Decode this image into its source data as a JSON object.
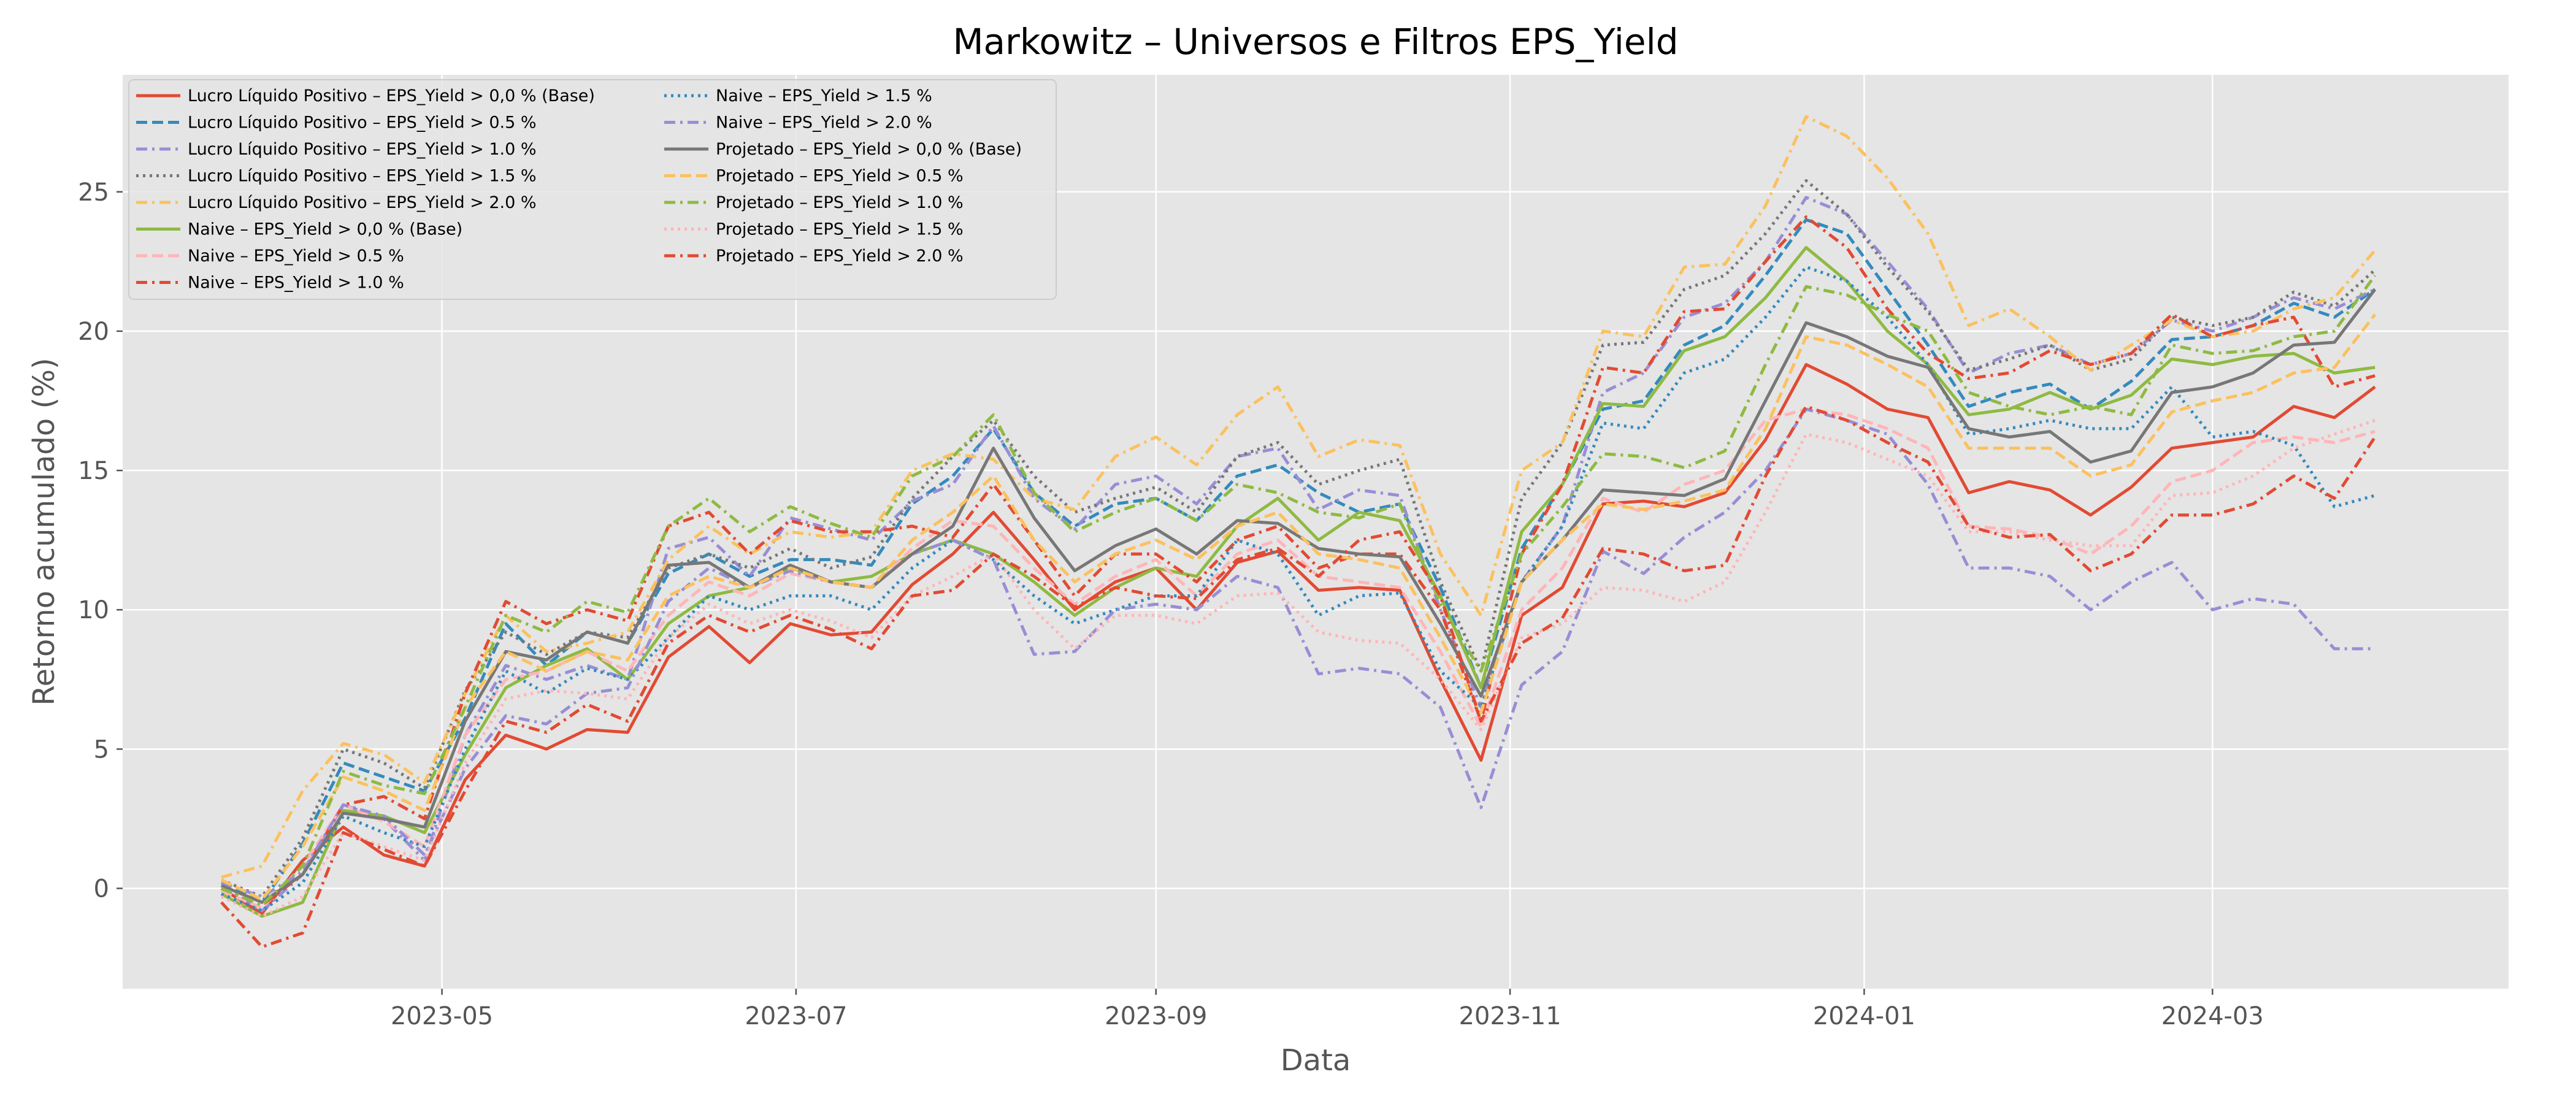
{
  "chart_data": {
    "type": "line",
    "title": "Markowitz – Universos e Filtros EPS_Yield",
    "xlabel": "Data",
    "ylabel": "Retorno acumulado (%)",
    "grid": true,
    "legend": "upper-left",
    "xlim": [
      "2023-03-07",
      "2024-04-21"
    ],
    "ylim": [
      -3.6,
      29.2
    ],
    "x_ticks": [
      {
        "date": "2023-05-01",
        "label": "2023-05"
      },
      {
        "date": "2023-07-01",
        "label": "2023-07"
      },
      {
        "date": "2023-09-01",
        "label": "2023-09"
      },
      {
        "date": "2023-11-01",
        "label": "2023-11"
      },
      {
        "date": "2024-01-01",
        "label": "2024-01"
      },
      {
        "date": "2024-03-01",
        "label": "2024-03"
      }
    ],
    "y_ticks": [
      0,
      5,
      10,
      15,
      20,
      25
    ],
    "x": [
      "2023-03-24",
      "2023-03-31",
      "2023-04-07",
      "2023-04-14",
      "2023-04-21",
      "2023-04-28",
      "2023-05-05",
      "2023-05-12",
      "2023-05-19",
      "2023-05-26",
      "2023-06-02",
      "2023-06-09",
      "2023-06-16",
      "2023-06-23",
      "2023-06-30",
      "2023-07-07",
      "2023-07-14",
      "2023-07-21",
      "2023-07-28",
      "2023-08-04",
      "2023-08-11",
      "2023-08-18",
      "2023-08-25",
      "2023-09-01",
      "2023-09-08",
      "2023-09-15",
      "2023-09-22",
      "2023-09-29",
      "2023-10-06",
      "2023-10-13",
      "2023-10-20",
      "2023-10-27",
      "2023-11-03",
      "2023-11-10",
      "2023-11-17",
      "2023-11-24",
      "2023-12-01",
      "2023-12-08",
      "2023-12-15",
      "2023-12-22",
      "2023-12-29",
      "2024-01-05",
      "2024-01-12",
      "2024-01-19",
      "2024-01-26",
      "2024-02-02",
      "2024-02-09",
      "2024-02-16",
      "2024-02-23",
      "2024-03-01",
      "2024-03-08",
      "2024-03-15",
      "2024-03-22",
      "2024-03-29"
    ],
    "series": [
      {
        "name": "Lucro Líquido Positivo – EPS_Yield > 0,0 % (Base)",
        "color": "#E24A33",
        "dash": "solid",
        "values": [
          0.0,
          -0.9,
          1.0,
          2.2,
          1.2,
          0.8,
          3.9,
          5.5,
          5.0,
          5.7,
          5.6,
          8.3,
          9.4,
          8.1,
          9.5,
          9.1,
          9.2,
          10.9,
          12.0,
          13.5,
          11.8,
          10.0,
          11.0,
          11.5,
          10.0,
          11.7,
          12.1,
          10.7,
          10.8,
          10.7,
          7.5,
          4.6,
          9.8,
          10.8,
          13.8,
          13.9,
          13.7,
          14.2,
          16.1,
          18.8,
          18.1,
          17.2,
          16.9,
          14.2,
          14.6,
          14.3,
          13.4,
          14.4,
          15.8,
          16.0,
          16.2,
          17.3,
          16.9,
          18.0
        ]
      },
      {
        "name": "Lucro Líquido Positivo – EPS_Yield > 0.5 %",
        "color": "#348ABD",
        "dash": "dashed",
        "values": [
          0.2,
          -0.5,
          1.6,
          4.5,
          4.0,
          3.5,
          6.1,
          9.5,
          8.0,
          9.2,
          8.8,
          11.3,
          12.0,
          11.2,
          11.8,
          11.8,
          11.6,
          13.8,
          14.8,
          16.5,
          14.2,
          13.0,
          13.8,
          14.0,
          13.2,
          14.8,
          15.2,
          14.2,
          13.5,
          13.8,
          10.8,
          7.2,
          12.2,
          14.5,
          17.2,
          17.5,
          19.5,
          20.2,
          22.0,
          24.0,
          23.5,
          21.5,
          19.5,
          17.3,
          17.8,
          18.1,
          17.2,
          18.2,
          19.7,
          19.8,
          20.2,
          21.0,
          20.5,
          21.5
        ]
      },
      {
        "name": "Lucro Líquido Positivo – EPS_Yield > 1.0 %",
        "color": "#988ED5",
        "dash": "dashdot",
        "values": [
          0.1,
          -0.8,
          0.5,
          3.0,
          2.5,
          1.0,
          5.5,
          8.0,
          7.5,
          8.0,
          7.5,
          12.2,
          12.6,
          11.2,
          13.3,
          12.9,
          12.5,
          13.9,
          14.5,
          16.6,
          14.0,
          12.9,
          14.5,
          14.8,
          13.8,
          15.5,
          15.8,
          13.6,
          14.3,
          14.1,
          10.0,
          6.5,
          11.0,
          13.0,
          17.8,
          18.5,
          20.5,
          21.0,
          22.5,
          24.8,
          24.2,
          22.5,
          20.8,
          18.5,
          19.2,
          19.5,
          18.8,
          19.2,
          20.4,
          20.0,
          20.5,
          21.2,
          20.8,
          21.5
        ]
      },
      {
        "name": "Lucro Líquido Positivo – EPS_Yield > 1.5 %",
        "color": "#777777",
        "dash": "dotted",
        "values": [
          0.3,
          -0.3,
          1.8,
          5.0,
          4.5,
          3.6,
          7.1,
          9.2,
          8.4,
          9.2,
          9.0,
          11.5,
          12.0,
          11.5,
          12.2,
          11.5,
          11.9,
          14.0,
          15.5,
          16.8,
          14.8,
          13.5,
          14.0,
          14.4,
          13.5,
          15.5,
          16.0,
          14.5,
          15.0,
          15.4,
          11.0,
          7.8,
          14.0,
          16.0,
          19.5,
          19.6,
          21.5,
          22.0,
          23.5,
          25.4,
          24.2,
          22.3,
          20.7,
          18.6,
          19.0,
          19.5,
          18.6,
          19.0,
          20.5,
          20.2,
          20.5,
          21.4,
          20.9,
          22.2
        ]
      },
      {
        "name": "Lucro Líquido Positivo – EPS_Yield > 2.0 %",
        "color": "#FBC15E",
        "dash": "dashdot",
        "values": [
          0.4,
          0.8,
          3.5,
          5.2,
          4.8,
          3.8,
          7.0,
          9.8,
          8.5,
          8.8,
          9.2,
          11.8,
          13.0,
          12.0,
          12.8,
          12.6,
          12.8,
          15.0,
          15.6,
          15.4,
          14.0,
          13.6,
          15.5,
          16.2,
          15.2,
          17.0,
          18.0,
          15.5,
          16.1,
          15.9,
          12.0,
          9.8,
          15.0,
          16.0,
          20.0,
          19.8,
          22.3,
          22.4,
          24.5,
          27.7,
          27.0,
          25.5,
          23.5,
          20.2,
          20.8,
          19.8,
          18.6,
          19.5,
          20.4,
          19.8,
          20.0,
          20.8,
          21.2,
          22.9
        ]
      },
      {
        "name": "Naive – EPS_Yield > 0,0 % (Base)",
        "color": "#8EBA42",
        "dash": "solid",
        "values": [
          -0.2,
          -1.0,
          -0.5,
          2.8,
          2.6,
          2.0,
          4.8,
          7.2,
          8.0,
          8.6,
          7.5,
          9.5,
          10.5,
          10.8,
          11.5,
          11.0,
          11.2,
          12.0,
          12.5,
          12.0,
          11.0,
          9.8,
          10.8,
          11.5,
          11.2,
          13.0,
          14.0,
          12.5,
          13.5,
          13.2,
          10.5,
          7.2,
          12.8,
          14.5,
          17.4,
          17.3,
          19.3,
          19.8,
          21.2,
          23.0,
          21.8,
          20.0,
          18.8,
          17.0,
          17.2,
          17.8,
          17.2,
          17.7,
          19.0,
          18.8,
          19.1,
          19.2,
          18.5,
          18.7
        ]
      },
      {
        "name": "Naive – EPS_Yield > 0.5 %",
        "color": "#FFB5B8",
        "dash": "dashed",
        "values": [
          -0.1,
          -0.7,
          0.8,
          3.0,
          2.4,
          1.5,
          5.5,
          7.5,
          7.8,
          8.5,
          7.8,
          9.8,
          11.0,
          10.5,
          11.3,
          11.0,
          10.8,
          12.2,
          13.2,
          13.0,
          11.5,
          10.2,
          11.2,
          11.8,
          10.5,
          12.0,
          12.5,
          11.2,
          11.0,
          10.8,
          8.5,
          5.8,
          10.0,
          11.5,
          14.0,
          13.5,
          14.5,
          15.0,
          16.8,
          17.2,
          17.0,
          16.5,
          15.8,
          13.0,
          12.9,
          12.6,
          12.0,
          13.0,
          14.6,
          15.0,
          16.0,
          16.2,
          16.0,
          16.4
        ]
      },
      {
        "name": "Naive – EPS_Yield > 1.0 %",
        "color": "#E24A33",
        "dash": "dashdot",
        "values": [
          0.0,
          -0.6,
          0.5,
          3.0,
          3.3,
          2.5,
          7.0,
          10.3,
          9.5,
          10.0,
          9.6,
          13.0,
          13.5,
          12.0,
          13.2,
          12.8,
          12.8,
          13.0,
          12.6,
          14.5,
          12.5,
          10.5,
          12.0,
          12.0,
          11.0,
          12.5,
          13.0,
          11.5,
          12.0,
          12.0,
          10.0,
          6.0,
          12.0,
          14.5,
          18.7,
          18.5,
          20.7,
          20.8,
          22.5,
          24.1,
          23.0,
          20.8,
          19.2,
          18.3,
          18.5,
          19.3,
          18.8,
          19.2,
          20.6,
          19.8,
          20.2,
          20.5,
          18.0,
          18.4
        ]
      },
      {
        "name": "Naive – EPS_Yield > 1.5 %",
        "color": "#348ABD",
        "dash": "dotted",
        "values": [
          -0.2,
          -0.8,
          0.2,
          2.6,
          2.0,
          1.5,
          5.0,
          7.8,
          7.0,
          7.9,
          7.5,
          9.0,
          10.5,
          10.0,
          10.5,
          10.5,
          10.0,
          11.5,
          12.5,
          11.8,
          10.5,
          9.5,
          10.0,
          10.5,
          10.5,
          12.5,
          12.0,
          9.8,
          10.5,
          10.6,
          7.8,
          6.5,
          11.0,
          13.0,
          16.7,
          16.5,
          18.5,
          19.0,
          20.5,
          22.3,
          21.8,
          20.5,
          18.8,
          16.3,
          16.5,
          16.8,
          16.5,
          16.5,
          18.0,
          16.2,
          16.4,
          15.9,
          13.7,
          14.1
        ]
      },
      {
        "name": "Naive – EPS_Yield > 2.0 %",
        "color": "#988ED5",
        "dash": "dashdot",
        "values": [
          0.2,
          -0.3,
          0.6,
          3.0,
          2.6,
          1.2,
          4.3,
          6.2,
          5.9,
          7.0,
          7.2,
          10.3,
          11.5,
          10.8,
          11.4,
          11.0,
          10.8,
          12.0,
          12.5,
          11.8,
          8.4,
          8.5,
          10.0,
          10.2,
          10.0,
          11.2,
          10.8,
          7.7,
          7.9,
          7.7,
          6.5,
          2.9,
          7.3,
          8.5,
          12.1,
          11.3,
          12.6,
          13.5,
          15.0,
          17.2,
          16.8,
          16.3,
          14.5,
          11.5,
          11.5,
          11.2,
          10.0,
          11.0,
          11.7,
          10.0,
          10.4,
          10.2,
          8.6,
          8.6
        ]
      },
      {
        "name": "Projetado – EPS_Yield > 0,0 % (Base)",
        "color": "#777777",
        "dash": "solid",
        "values": [
          0.1,
          -0.5,
          0.5,
          2.7,
          2.5,
          2.2,
          6.0,
          8.5,
          8.2,
          9.2,
          8.8,
          11.6,
          11.7,
          10.8,
          11.6,
          11.0,
          10.8,
          12.0,
          13.0,
          15.8,
          13.3,
          11.4,
          12.3,
          12.9,
          12.0,
          13.2,
          13.1,
          12.2,
          12.0,
          11.9,
          9.5,
          6.9,
          11.0,
          12.5,
          14.3,
          14.2,
          14.1,
          14.7,
          17.5,
          20.3,
          19.8,
          19.1,
          18.7,
          16.5,
          16.2,
          16.4,
          15.3,
          15.7,
          17.8,
          18.0,
          18.5,
          19.5,
          19.6,
          21.5
        ]
      },
      {
        "name": "Projetado – EPS_Yield > 0.5 %",
        "color": "#FBC15E",
        "dash": "dashed",
        "values": [
          0.3,
          -0.4,
          1.5,
          4.0,
          3.5,
          2.8,
          6.5,
          8.5,
          7.8,
          8.5,
          8.2,
          10.5,
          11.2,
          10.8,
          11.5,
          11.0,
          10.8,
          12.5,
          13.5,
          14.8,
          12.5,
          11.0,
          12.0,
          12.5,
          11.8,
          13.0,
          13.5,
          12.0,
          11.8,
          11.5,
          9.0,
          6.3,
          11.0,
          12.5,
          13.8,
          13.6,
          13.9,
          14.3,
          16.5,
          19.8,
          19.5,
          18.8,
          18.0,
          15.8,
          15.8,
          15.8,
          14.8,
          15.2,
          17.1,
          17.5,
          17.8,
          18.5,
          18.7,
          20.6
        ]
      },
      {
        "name": "Projetado – EPS_Yield > 1.0 %",
        "color": "#8EBA42",
        "dash": "dashdot",
        "values": [
          0.0,
          -0.6,
          0.8,
          4.2,
          3.7,
          3.4,
          6.5,
          9.8,
          9.2,
          10.3,
          9.9,
          13.0,
          14.0,
          12.8,
          13.7,
          13.1,
          12.6,
          14.8,
          15.5,
          17.0,
          14.2,
          12.8,
          13.5,
          14.0,
          13.2,
          14.5,
          14.2,
          13.5,
          13.3,
          13.8,
          10.2,
          7.8,
          12.0,
          13.7,
          15.6,
          15.5,
          15.1,
          15.7,
          18.8,
          21.6,
          21.3,
          20.6,
          20.0,
          17.8,
          17.3,
          17.0,
          17.3,
          17.0,
          19.5,
          19.2,
          19.3,
          19.8,
          20.0,
          22.0
        ]
      },
      {
        "name": "Projetado – EPS_Yield > 1.5 %",
        "color": "#FFB5B8",
        "dash": "dotted",
        "values": [
          -0.3,
          -1.0,
          -0.3,
          2.0,
          1.5,
          1.0,
          4.5,
          6.8,
          7.1,
          7.0,
          6.8,
          9.0,
          10.2,
          9.5,
          10.0,
          9.6,
          9.0,
          10.5,
          11.2,
          12.0,
          10.0,
          8.6,
          9.8,
          9.8,
          9.5,
          10.5,
          10.6,
          9.2,
          8.9,
          8.8,
          7.5,
          5.7,
          9.0,
          9.5,
          10.8,
          10.7,
          10.3,
          11.0,
          13.5,
          16.3,
          16.0,
          15.4,
          14.8,
          12.8,
          12.8,
          12.5,
          12.3,
          12.3,
          14.1,
          14.2,
          14.8,
          15.8,
          16.3,
          16.8
        ]
      },
      {
        "name": "Projetado – EPS_Yield > 2.0 %",
        "color": "#E24A33",
        "dash": "dashdot",
        "values": [
          -0.5,
          -2.1,
          -1.6,
          2.0,
          1.4,
          0.8,
          3.5,
          6.0,
          5.6,
          6.6,
          6.0,
          8.8,
          9.8,
          9.2,
          9.8,
          9.3,
          8.6,
          10.5,
          10.7,
          12.0,
          11.2,
          10.1,
          10.8,
          10.5,
          10.4,
          11.8,
          12.2,
          11.2,
          12.5,
          12.8,
          10.5,
          6.0,
          8.8,
          9.7,
          12.2,
          12.0,
          11.4,
          11.6,
          14.8,
          17.3,
          16.8,
          16.0,
          15.3,
          13.0,
          12.6,
          12.7,
          11.4,
          12.0,
          13.4,
          13.4,
          13.8,
          14.8,
          14.0,
          16.2
        ]
      }
    ]
  }
}
